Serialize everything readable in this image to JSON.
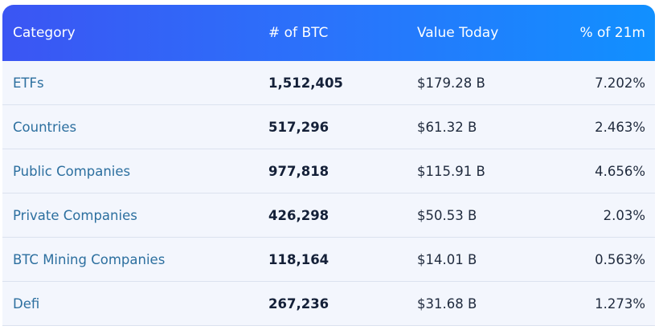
{
  "table": {
    "headers": [
      "Category",
      "# of BTC",
      "Value Today",
      "% of 21m"
    ],
    "rows": [
      [
        "ETFs",
        "1,512,405",
        "$179.28 B",
        "7.202%"
      ],
      [
        "Countries",
        "517,296",
        "$61.32 B",
        "2.463%"
      ],
      [
        "Public Companies",
        "977,818",
        "$115.91 B",
        "4.656%"
      ],
      [
        "Private Companies",
        "426,298",
        "$50.53 B",
        "2.03%"
      ],
      [
        "BTC Mining Companies",
        "118,164",
        "$14.01 B",
        "0.563%"
      ],
      [
        "Defi",
        "267,236",
        "$31.68 B",
        "1.273%"
      ]
    ]
  }
}
